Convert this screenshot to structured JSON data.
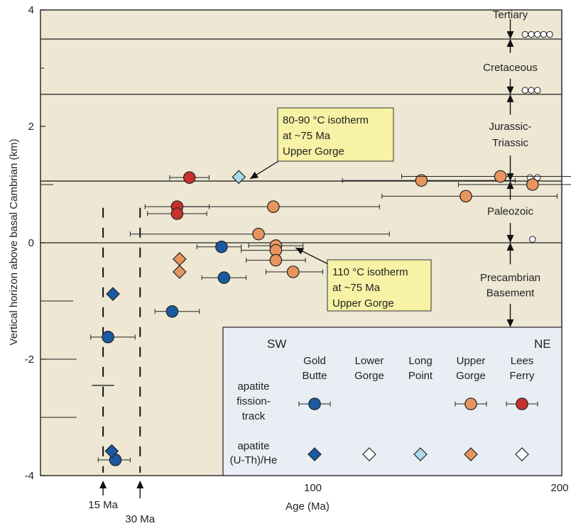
{
  "chart_data": {
    "type": "scatter",
    "xlabel": "Age (Ma)",
    "ylabel": "Vertical horizon above basal Cambrian (km)",
    "xlim": [
      0,
      200
    ],
    "ylim": [
      -4,
      4
    ],
    "x_ticks": [
      100,
      200
    ],
    "y_ticks": [
      4,
      2,
      0,
      -2,
      -4
    ],
    "grid": false,
    "colors": {
      "plot_bg": "#ede7d4",
      "legend_bg": "#e9eef4",
      "gold_butte": "#1b5aa0",
      "lower_gorge": "#ffffff",
      "long_point": "#a9d9ec",
      "upper_gorge": "#e8945f",
      "lees_ferry": "#c8312b",
      "callout": "#f7f2a6"
    },
    "stratigraphy": {
      "boundaries": [
        3.5,
        2.55,
        1.06,
        0.0
      ],
      "units": [
        {
          "label": "Tertiary",
          "y": 3.92
        },
        {
          "label": "Cretaceous",
          "y": 3.01
        },
        {
          "label": "Jurassic-",
          "y": 2.0
        },
        {
          "label": "Triassic",
          "y": 1.72
        },
        {
          "label": "Paleozoic",
          "y": 0.54
        },
        {
          "label": "Precambrian",
          "y": -0.6
        },
        {
          "label": "Basement",
          "y": -0.86
        }
      ],
      "arrow_x": 180
    },
    "open_circles": [
      {
        "x": 186,
        "y": 3.58
      },
      {
        "x": 188.5,
        "y": 3.58
      },
      {
        "x": 191,
        "y": 3.58
      },
      {
        "x": 193.5,
        "y": 3.58
      },
      {
        "x": 196,
        "y": 3.58
      },
      {
        "x": 186,
        "y": 2.62
      },
      {
        "x": 188.5,
        "y": 2.62
      },
      {
        "x": 191,
        "y": 2.62
      },
      {
        "x": 188,
        "y": 1.12
      },
      {
        "x": 191,
        "y": 1.12
      },
      {
        "x": 189,
        "y": 0.06
      }
    ],
    "series": [
      {
        "name": "Gold Butte",
        "marker": "circle",
        "method": "apatite fission-track",
        "points": [
          {
            "x": 17,
            "y": -1.62,
            "xerr": [
              7,
              11
            ]
          },
          {
            "x": 20,
            "y": -3.73,
            "xerr": [
              7,
              6
            ]
          },
          {
            "x": 43,
            "y": -1.18,
            "xerr": [
              7,
              11
            ]
          },
          {
            "x": 63,
            "y": -0.07,
            "xerr": [
              10,
              8
            ]
          },
          {
            "x": 64,
            "y": -0.6,
            "xerr": [
              9,
              9
            ]
          }
        ]
      },
      {
        "name": "Gold Butte",
        "marker": "diamond",
        "method": "apatite (U-Th)/He",
        "points": [
          {
            "x": 19,
            "y": -0.88,
            "xerr": [
              0,
              0
            ]
          },
          {
            "x": 18.5,
            "y": -3.58,
            "xerr": [
              0,
              0
            ]
          }
        ]
      },
      {
        "name": "Long Point",
        "marker": "diamond",
        "method": "apatite (U-Th)/He",
        "points": [
          {
            "x": 70,
            "y": 1.13,
            "xerr": [
              0,
              0
            ]
          }
        ]
      },
      {
        "name": "Upper Gorge",
        "marker": "diamond",
        "method": "apatite (U-Th)/He",
        "points": [
          {
            "x": 46,
            "y": -0.28,
            "xerr": [
              0,
              0
            ]
          },
          {
            "x": 46,
            "y": -0.5,
            "xerr": [
              0,
              0
            ]
          }
        ]
      },
      {
        "name": "Upper Gorge",
        "marker": "circle",
        "method": "apatite fission-track",
        "points": [
          {
            "x": 84,
            "y": 0.62,
            "xerr": [
              39,
              43
            ]
          },
          {
            "x": 78,
            "y": 0.15,
            "xerr": [
              52,
              53
            ]
          },
          {
            "x": 85,
            "y": -0.05,
            "xerr": [
              11,
              11
            ]
          },
          {
            "x": 85,
            "y": -0.13,
            "xerr": [
              14,
              10
            ]
          },
          {
            "x": 85,
            "y": -0.3,
            "xerr": [
              12,
              12
            ]
          },
          {
            "x": 92,
            "y": -0.5,
            "xerr": [
              11,
              12
            ]
          },
          {
            "x": 144,
            "y": 1.07,
            "xerr": [
              32,
              38
            ]
          },
          {
            "x": 162,
            "y": 0.8,
            "xerr": [
              34,
              37
            ]
          },
          {
            "x": 176,
            "y": 1.14,
            "xerr": [
              40,
              37
            ]
          },
          {
            "x": 189,
            "y": 1.0,
            "xerr": [
              30,
              23
            ]
          }
        ]
      },
      {
        "name": "Lees Ferry",
        "marker": "circle",
        "method": "apatite fission-track",
        "points": [
          {
            "x": 50,
            "y": 1.12,
            "xerr": [
              8,
              8
            ]
          },
          {
            "x": 45,
            "y": 0.62,
            "xerr": [
              13,
              13
            ]
          },
          {
            "x": 45,
            "y": 0.5,
            "xerr": [
              12,
              12
            ]
          }
        ]
      }
    ],
    "dashed_age_lines": [
      {
        "x": 15,
        "label": "15 Ma"
      },
      {
        "x": 30,
        "label": "30 Ma"
      }
    ],
    "callouts": [
      {
        "lines": [
          "80-90 °C isotherm",
          "at ~75 Ma",
          "Upper Gorge"
        ]
      },
      {
        "lines": [
          "110 °C isotherm",
          "at ~75 Ma",
          "Upper Gorge"
        ]
      }
    ],
    "legend": {
      "placement": "bottom-right",
      "sw": "SW",
      "ne": "NE",
      "columns": [
        [
          "Gold",
          "Butte"
        ],
        [
          "Lower",
          "Gorge"
        ],
        [
          "Long",
          "Point"
        ],
        [
          "Upper",
          "Gorge"
        ],
        [
          "Lees",
          "Ferry"
        ]
      ],
      "row1": [
        "apatite",
        "fission-",
        "track"
      ],
      "row2": [
        "apatite",
        "(U-Th)/He"
      ]
    }
  }
}
